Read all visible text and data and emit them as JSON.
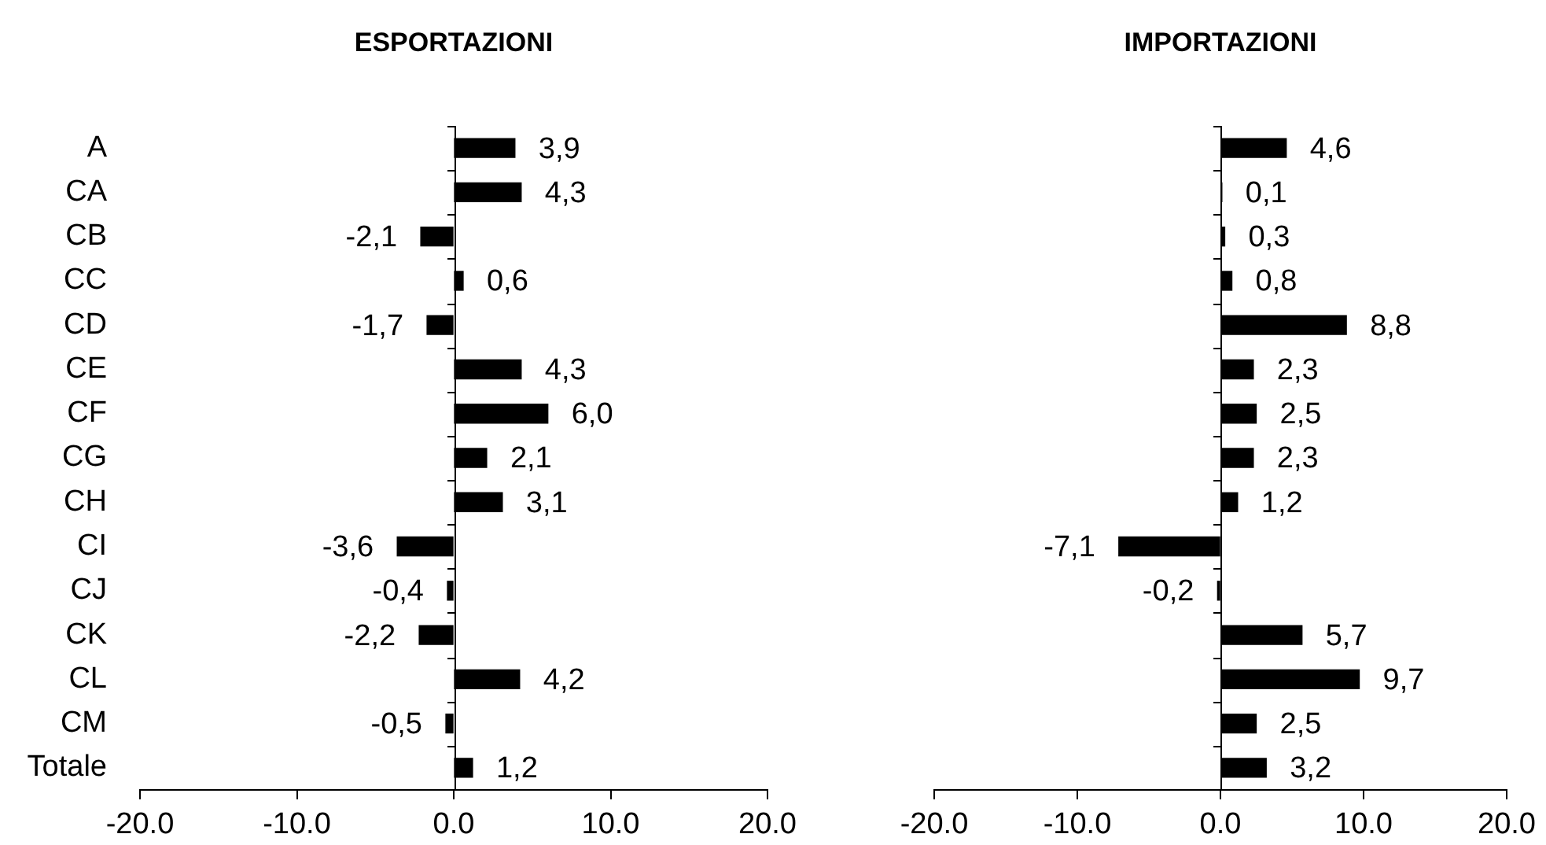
{
  "chart_data": [
    {
      "type": "bar",
      "title": "ESPORTAZIONI",
      "orientation": "horizontal",
      "categories": [
        "A",
        "CA",
        "CB",
        "CC",
        "CD",
        "CE",
        "CF",
        "CG",
        "CH",
        "CI",
        "CJ",
        "CK",
        "CL",
        "CM",
        "Totale"
      ],
      "values": [
        3.9,
        4.3,
        -2.1,
        0.6,
        -1.7,
        4.3,
        6.0,
        2.1,
        3.1,
        -3.6,
        -0.4,
        -2.2,
        4.2,
        -0.5,
        1.2
      ],
      "value_labels": [
        "3,9",
        "4,3",
        "-2,1",
        "0,6",
        "-1,7",
        "4,3",
        "6,0",
        "2,1",
        "3,1",
        "-3,6",
        "-0,4",
        "-2,2",
        "4,2",
        "-0,5",
        "1,2"
      ],
      "color": "#000000",
      "xlim": [
        -20,
        20
      ],
      "xticks": [
        {
          "value": -20,
          "label": "-20.0"
        },
        {
          "value": -10,
          "label": "-10.0"
        },
        {
          "value": 0,
          "label": "0.0"
        },
        {
          "value": 10,
          "label": "10.0"
        },
        {
          "value": 20,
          "label": "20.0"
        }
      ]
    },
    {
      "type": "bar",
      "title": "IMPORTAZIONI",
      "orientation": "horizontal",
      "categories": [
        null,
        null,
        null,
        null,
        null,
        null,
        null,
        null,
        null,
        null,
        null,
        null,
        null,
        null,
        null
      ],
      "values": [
        4.6,
        0.1,
        0.3,
        0.8,
        8.8,
        2.3,
        2.5,
        2.3,
        1.2,
        -7.1,
        -0.2,
        5.7,
        9.7,
        2.5,
        3.2
      ],
      "value_labels": [
        "4,6",
        "0,1",
        "0,3",
        "0,8",
        "8,8",
        "2,3",
        "2,5",
        "2,3",
        "1,2",
        "-7,1",
        "-0,2",
        "5,7",
        "9,7",
        "2,5",
        "3,2"
      ],
      "color": "#000000",
      "xlim": [
        -20,
        20
      ],
      "xticks": [
        {
          "value": -20,
          "label": "-20.0"
        },
        {
          "value": -10,
          "label": "-10.0"
        },
        {
          "value": 0,
          "label": "0.0"
        },
        {
          "value": 10,
          "label": "10.0"
        },
        {
          "value": 20,
          "label": "20.0"
        }
      ]
    }
  ]
}
